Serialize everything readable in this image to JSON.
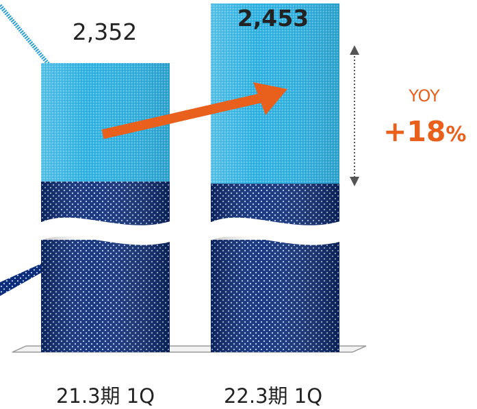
{
  "chart_data": {
    "type": "bar",
    "stacked": true,
    "broken_axis": true,
    "categories": [
      "21.3期 1Q",
      "22.3期 1Q"
    ],
    "totals": [
      2352,
      2453
    ],
    "total_labels": [
      "2,352",
      "2,453"
    ],
    "yoy": {
      "title": "YOY",
      "value": "+18",
      "unit": "%"
    },
    "colors": {
      "upper_segment": "#33b4e4",
      "lower_segment": "#0d2d7a",
      "arrow": "#e8601c",
      "yoy_text": "#e8601c"
    }
  }
}
